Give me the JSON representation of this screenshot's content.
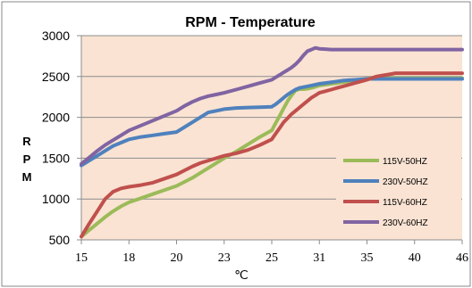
{
  "chart_data": {
    "type": "line",
    "title": "RPM - Temperature",
    "xlabel": "℃",
    "ylabel": "RPM",
    "categories": [
      "15",
      "18",
      "20",
      "23",
      "25",
      "31",
      "35",
      "40",
      "46"
    ],
    "ylim": [
      500,
      3000
    ],
    "yticks": [
      500,
      1000,
      1500,
      2000,
      2500,
      3000
    ],
    "grid": true,
    "legend_position": "lower-right",
    "background_color": "#fae3d3",
    "series": [
      {
        "name": "115V-50HZ",
        "color": "#9bbb59",
        "x": [
          15,
          15.5,
          16,
          16.5,
          17,
          17.5,
          18,
          18.5,
          19,
          19.5,
          20,
          20.5,
          21,
          21.5,
          22,
          22.5,
          23,
          23.5,
          24,
          24.5,
          25,
          25.5,
          26,
          26.5,
          27,
          27.5,
          28,
          28.5,
          29,
          29.5,
          30,
          30.5,
          31,
          31.5,
          32,
          32.5,
          33,
          33.5,
          34,
          34.5,
          35,
          35.5,
          36,
          36.5,
          37,
          37.5,
          38,
          38.5,
          39,
          39.5,
          40,
          40.5,
          41,
          41.5,
          42,
          42.5,
          43,
          43.5,
          44,
          44.5,
          45,
          45.5,
          46
        ],
        "values": [
          540,
          620,
          700,
          780,
          850,
          910,
          960,
          1010,
          1060,
          1110,
          1160,
          1210,
          1260,
          1320,
          1380,
          1440,
          1500,
          1580,
          1670,
          1760,
          1840,
          1930,
          2020,
          2110,
          2200,
          2270,
          2330,
          2345,
          2345,
          2350,
          2360,
          2375,
          2390,
          2400,
          2410,
          2420,
          2430,
          2440,
          2450,
          2460,
          2470,
          2480,
          2480,
          2480,
          2480,
          2480,
          2480,
          2480,
          2480,
          2480,
          2480,
          2480,
          2480,
          2480,
          2480,
          2480,
          2480,
          2480,
          2480,
          2480,
          2480,
          2480,
          2480
        ]
      },
      {
        "name": "230V-50HZ",
        "color": "#4f81bd",
        "x": [
          15,
          15.5,
          16,
          16.5,
          17,
          17.5,
          18,
          18.5,
          19,
          19.5,
          20,
          20.5,
          21,
          21.5,
          22,
          22.5,
          23,
          23.5,
          24,
          24.5,
          25,
          25.5,
          26,
          26.5,
          27,
          27.5,
          28,
          28.5,
          29,
          29.5,
          30,
          30.5,
          31,
          31.5,
          32,
          32.5,
          33,
          33.5,
          34,
          34.5,
          35,
          35.5,
          36,
          36.5,
          37,
          37.5,
          38,
          38.5,
          39,
          39.5,
          40,
          40.5,
          41,
          41.5,
          42,
          42.5,
          43,
          43.5,
          44,
          44.5,
          45,
          45.5,
          46
        ],
        "values": [
          1410,
          1470,
          1530,
          1590,
          1650,
          1690,
          1730,
          1760,
          1780,
          1800,
          1820,
          1880,
          1940,
          2000,
          2060,
          2080,
          2100,
          2115,
          2120,
          2125,
          2130,
          2160,
          2200,
          2240,
          2280,
          2310,
          2340,
          2360,
          2370,
          2380,
          2390,
          2400,
          2410,
          2420,
          2430,
          2440,
          2450,
          2455,
          2460,
          2465,
          2470,
          2470,
          2470,
          2470,
          2470,
          2470,
          2470,
          2470,
          2470,
          2470,
          2470,
          2470,
          2470,
          2470,
          2470,
          2470,
          2470,
          2470,
          2470,
          2470,
          2470,
          2470,
          2470
        ]
      },
      {
        "name": "115V-60HZ",
        "color": "#c0504d",
        "x": [
          15,
          15.5,
          16,
          16.5,
          17,
          17.5,
          18,
          18.5,
          19,
          19.5,
          20,
          20.5,
          21,
          21.5,
          22,
          22.5,
          23,
          23.5,
          24,
          24.5,
          25,
          25.5,
          26,
          26.5,
          27,
          27.5,
          28,
          28.5,
          29,
          29.5,
          30,
          30.5,
          31,
          31.5,
          32,
          32.5,
          33,
          33.5,
          34,
          34.5,
          35,
          35.5,
          36,
          36.5,
          37,
          37.5,
          38,
          38.5,
          39,
          39.5,
          40,
          40.5,
          41,
          41.5,
          42,
          42.5,
          43,
          43.5,
          44,
          44.5,
          45,
          45.5,
          46
        ],
        "values": [
          540,
          700,
          850,
          1000,
          1090,
          1130,
          1150,
          1170,
          1200,
          1250,
          1300,
          1350,
          1400,
          1440,
          1470,
          1500,
          1530,
          1560,
          1600,
          1660,
          1730,
          1800,
          1870,
          1940,
          1990,
          2040,
          2080,
          2120,
          2160,
          2200,
          2240,
          2270,
          2300,
          2320,
          2340,
          2360,
          2380,
          2400,
          2420,
          2440,
          2460,
          2480,
          2500,
          2510,
          2520,
          2530,
          2540,
          2540,
          2540,
          2540,
          2540,
          2540,
          2540,
          2540,
          2540,
          2540,
          2540,
          2540,
          2540,
          2540,
          2540,
          2540,
          2540
        ]
      },
      {
        "name": "230V-60HZ",
        "color": "#8064a2",
        "x": [
          15,
          15.5,
          16,
          16.5,
          17,
          17.5,
          18,
          18.5,
          19,
          19.5,
          20,
          20.5,
          21,
          21.5,
          22,
          22.5,
          23,
          23.5,
          24,
          24.5,
          25,
          25.5,
          26,
          26.5,
          27,
          27.5,
          28,
          28.5,
          29,
          29.5,
          30,
          30.5,
          31,
          31.5,
          32,
          32.5,
          33,
          33.5,
          34,
          34.5,
          35,
          35.5,
          36,
          36.5,
          37,
          37.5,
          38,
          38.5,
          39,
          39.5,
          40,
          40.5,
          41,
          41.5,
          42,
          42.5,
          43,
          43.5,
          44,
          44.5,
          45,
          45.5,
          46
        ],
        "values": [
          1430,
          1510,
          1590,
          1660,
          1720,
          1780,
          1840,
          1900,
          1960,
          2020,
          2080,
          2140,
          2190,
          2230,
          2260,
          2280,
          2300,
          2340,
          2380,
          2420,
          2460,
          2490,
          2520,
          2550,
          2580,
          2610,
          2650,
          2700,
          2760,
          2810,
          2830,
          2850,
          2840,
          2835,
          2830,
          2830,
          2830,
          2830,
          2830,
          2830,
          2830,
          2830,
          2830,
          2830,
          2830,
          2830,
          2830,
          2830,
          2830,
          2830,
          2830,
          2830,
          2830,
          2830,
          2830,
          2830,
          2830,
          2830,
          2830,
          2830,
          2830,
          2830,
          2830
        ]
      }
    ]
  }
}
